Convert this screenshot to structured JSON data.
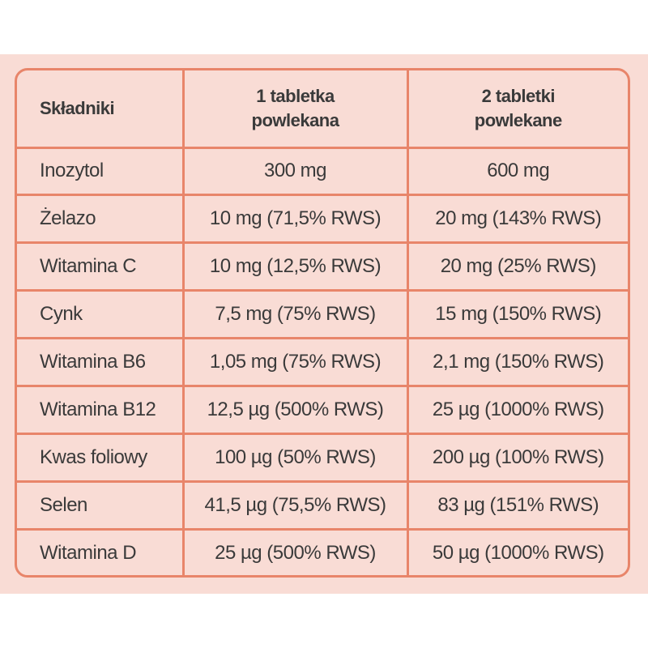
{
  "table": {
    "headers": {
      "ingredient": "Składniki",
      "one_tablet": [
        "1 tabletka",
        "powlekana"
      ],
      "two_tablets": [
        "2 tabletki",
        "powlekane"
      ]
    },
    "rows": [
      {
        "name": "Inozytol",
        "one": "300 mg",
        "two": "600 mg"
      },
      {
        "name": "Żelazo",
        "one": "10 mg (71,5% RWS)",
        "two": "20 mg (143% RWS)"
      },
      {
        "name": "Witamina C",
        "one": "10 mg (12,5% RWS)",
        "two": "20 mg (25% RWS)"
      },
      {
        "name": "Cynk",
        "one": "7,5 mg (75% RWS)",
        "two": "15 mg (150% RWS)"
      },
      {
        "name": "Witamina B6",
        "one": "1,05 mg (75% RWS)",
        "two": "2,1 mg (150% RWS)"
      },
      {
        "name": "Witamina B12",
        "one": "12,5 µg (500% RWS)",
        "two": "25 µg (1000% RWS)"
      },
      {
        "name": "Kwas foliowy",
        "one": "100 µg (50% RWS)",
        "two": "200 µg (100% RWS)"
      },
      {
        "name": "Selen",
        "one": "41,5 µg (75,5% RWS)",
        "two": "83 µg (151% RWS)"
      },
      {
        "name": "Witamina D",
        "one": "25 µg (500% RWS)",
        "two": "50 µg (1000% RWS)"
      }
    ]
  },
  "colors": {
    "background": "#f9dcd5",
    "border": "#e8856a",
    "text": "#3a3a3a"
  }
}
